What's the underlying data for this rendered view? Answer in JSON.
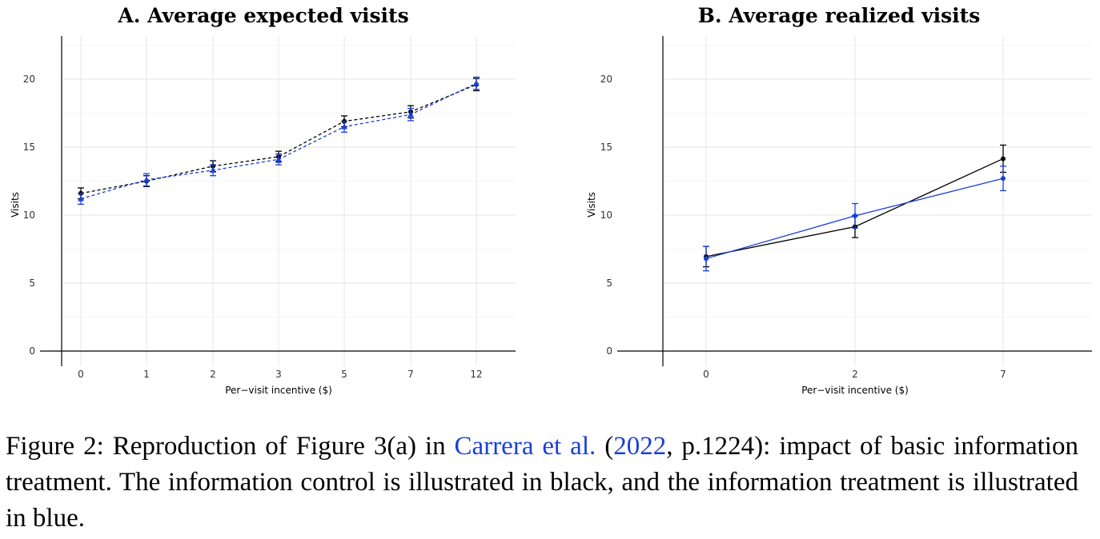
{
  "chart_data": [
    {
      "type": "line",
      "title": "A. Average expected visits",
      "xlabel": "Per−visit incentive ($)",
      "ylabel": "Visits",
      "categories": [
        "0",
        "1",
        "2",
        "3",
        "5",
        "7",
        "12"
      ],
      "ylim": [
        0,
        22
      ],
      "yticks": [
        "0",
        "5",
        "10",
        "15",
        "20"
      ],
      "line_style": "dashed",
      "series": [
        {
          "color": "#000000",
          "marker": "circle",
          "values": [
            11.6,
            12.5,
            13.6,
            14.3,
            16.9,
            17.6,
            19.6
          ],
          "err": [
            0.4,
            0.4,
            0.4,
            0.4,
            0.4,
            0.45,
            0.45
          ]
        },
        {
          "color": "#1a3fd9",
          "marker": "triangle",
          "values": [
            11.2,
            12.6,
            13.3,
            14.1,
            16.5,
            17.4,
            19.7
          ],
          "err": [
            0.4,
            0.45,
            0.4,
            0.4,
            0.4,
            0.45,
            0.45
          ]
        }
      ]
    },
    {
      "type": "line",
      "title": "B. Average realized visits",
      "xlabel": "Per−visit incentive ($)",
      "ylabel": "Visits",
      "categories": [
        "0",
        "2",
        "7"
      ],
      "ylim": [
        0,
        22
      ],
      "yticks": [
        "0",
        "5",
        "10",
        "15",
        "20"
      ],
      "line_style": "solid",
      "series": [
        {
          "color": "#000000",
          "marker": "circle",
          "values": [
            6.95,
            9.15,
            14.15
          ],
          "err": [
            0.75,
            0.8,
            1.0
          ]
        },
        {
          "color": "#1a3fd9",
          "marker": "circle",
          "values": [
            6.8,
            9.95,
            12.7
          ],
          "err": [
            0.9,
            0.9,
            0.9
          ]
        }
      ]
    }
  ],
  "caption": {
    "prefix": "Figure 2:  Reproduction of Figure 3(a) in ",
    "cite_authors": "Carrera et al.",
    "paren_open": " (",
    "cite_year": "2022",
    "cite_rest": ", p.1224):  impact of basic information treatment.  The information control is illustrated in black, and the information treatment is illustrated in blue."
  }
}
